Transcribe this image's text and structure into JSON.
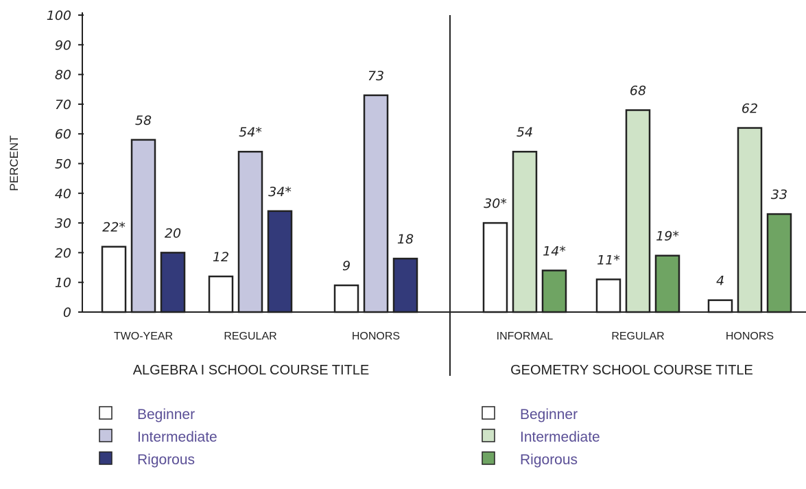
{
  "chart_data": {
    "type": "bar",
    "ylabel": "PERCENT",
    "ylim": [
      0,
      100
    ],
    "yticks": [
      "0",
      "10",
      "20",
      "30",
      "40",
      "50",
      "60",
      "70",
      "80",
      "90",
      "100"
    ],
    "groups": [
      {
        "title": "ALGEBRA I SCHOOL COURSE TITLE",
        "categories": [
          "TWO-YEAR",
          "REGULAR",
          "HONORS"
        ],
        "series": [
          {
            "name": "Beginner",
            "color": "#ffffff",
            "values": [
              22,
              12,
              9
            ],
            "labels": [
              "22*",
              "12",
              "9"
            ]
          },
          {
            "name": "Intermediate",
            "color": "#c5c6df",
            "values": [
              58,
              54,
              73
            ],
            "labels": [
              "58",
              "54*",
              "73"
            ]
          },
          {
            "name": "Rigorous",
            "color": "#333a7a",
            "values": [
              20,
              34,
              18
            ],
            "labels": [
              "20",
              "34*",
              "18"
            ]
          }
        ]
      },
      {
        "title": "GEOMETRY SCHOOL COURSE TITLE",
        "categories": [
          "INFORMAL",
          "REGULAR",
          "HONORS"
        ],
        "series": [
          {
            "name": "Beginner",
            "color": "#ffffff",
            "values": [
              30,
              11,
              4
            ],
            "labels": [
              "30*",
              "11*",
              "4"
            ]
          },
          {
            "name": "Intermediate",
            "color": "#cfe3c7",
            "values": [
              54,
              68,
              62
            ],
            "labels": [
              "54",
              "68",
              "62"
            ]
          },
          {
            "name": "Rigorous",
            "color": "#6fa463",
            "values": [
              14,
              19,
              33
            ],
            "labels": [
              "14*",
              "19*",
              "33"
            ]
          }
        ]
      }
    ],
    "legend_text_color": "#5a4f96",
    "grid": false,
    "legend_position": "bottom"
  }
}
